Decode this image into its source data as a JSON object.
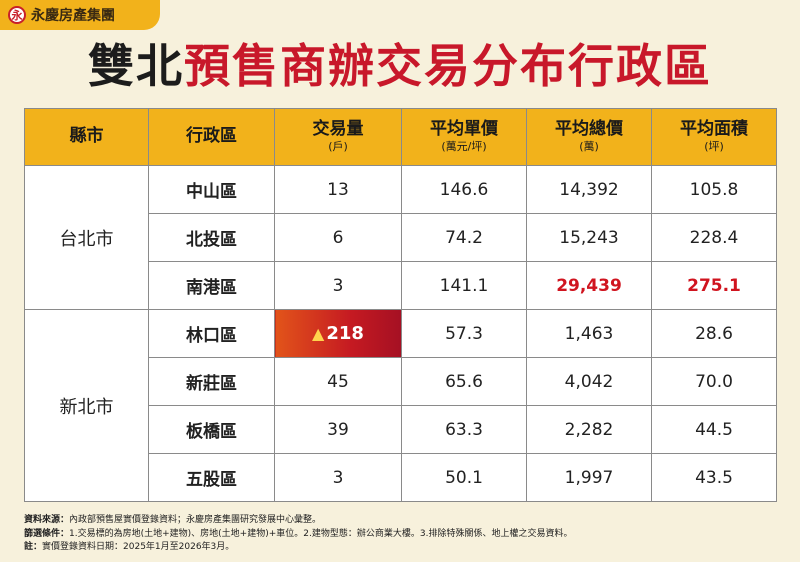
{
  "brand": {
    "logo_glyph": "永",
    "name": "永慶房產集團"
  },
  "title": {
    "part1": "雙北",
    "part2": "預售商辦交易分布行政區"
  },
  "table": {
    "headers": [
      {
        "label": "縣市",
        "unit": ""
      },
      {
        "label": "行政區",
        "unit": ""
      },
      {
        "label": "交易量",
        "unit": "(戶)"
      },
      {
        "label": "平均單價",
        "unit": "(萬元/坪)"
      },
      {
        "label": "平均總價",
        "unit": "(萬)"
      },
      {
        "label": "平均面積",
        "unit": "(坪)"
      }
    ],
    "groups": [
      {
        "city": "台北市",
        "rows": [
          {
            "district": "中山區",
            "volume": "13",
            "unit_price": "146.6",
            "total_price": "14,392",
            "area": "105.8"
          },
          {
            "district": "北投區",
            "volume": "6",
            "unit_price": "74.2",
            "total_price": "15,243",
            "area": "228.4"
          },
          {
            "district": "南港區",
            "volume": "3",
            "unit_price": "141.1",
            "total_price": "29,439",
            "area": "275.1"
          }
        ]
      },
      {
        "city": "新北市",
        "rows": [
          {
            "district": "林口區",
            "volume": "218",
            "unit_price": "57.3",
            "total_price": "1,463",
            "area": "28.6"
          },
          {
            "district": "新莊區",
            "volume": "45",
            "unit_price": "65.6",
            "total_price": "4,042",
            "area": "70.0"
          },
          {
            "district": "板橋區",
            "volume": "39",
            "unit_price": "63.3",
            "total_price": "2,282",
            "area": "44.5"
          },
          {
            "district": "五股區",
            "volume": "3",
            "unit_price": "50.1",
            "total_price": "1,997",
            "area": "43.5"
          }
        ]
      }
    ]
  },
  "highlight_colors": {
    "red_text": "#d0141f",
    "hot_cell": "#c51a22",
    "header_bg": "#f2b21b"
  },
  "notes": [
    {
      "label": "資料來源：",
      "text": "內政部預售屋實價登錄資料；永慶房產集團研究發展中心彙整。"
    },
    {
      "label": "篩選條件：",
      "text": "1.交易標的為房地(土地+建物)、房地(土地+建物)+車位。2.建物型態：辦公商業大樓。3.排除特殊關係、地上權之交易資料。"
    },
    {
      "label": "註：",
      "text": "實價登錄資料日期：2025年1月至2026年3月。"
    }
  ]
}
